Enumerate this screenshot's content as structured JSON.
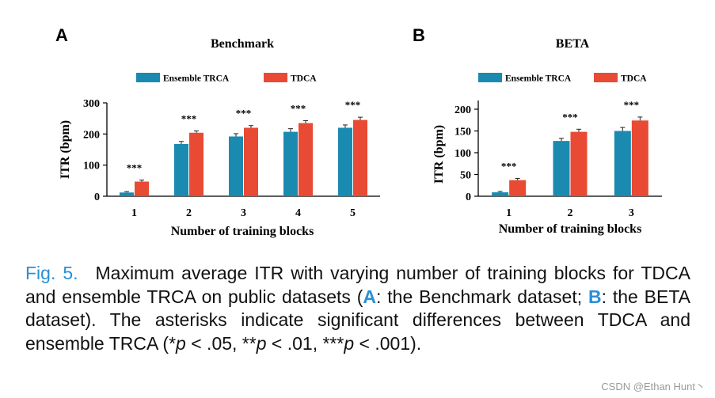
{
  "colors": {
    "ensemble": "#1a8ab0",
    "tdca": "#e84a33",
    "caption_accent": "#2a8fd6"
  },
  "chart_data": [
    {
      "panel": "A",
      "type": "bar",
      "title": "Benchmark",
      "xlabel": "Number of training blocks",
      "ylabel": "ITR (bpm)",
      "ylim": [
        0,
        300
      ],
      "yticks": [
        0,
        100,
        200,
        300
      ],
      "categories": [
        "1",
        "2",
        "3",
        "4",
        "5"
      ],
      "series": [
        {
          "name": "Ensemble TRCA",
          "values": [
            12,
            168,
            192,
            207,
            220
          ],
          "errors": [
            3,
            8,
            9,
            10,
            9
          ]
        },
        {
          "name": "TDCA",
          "values": [
            47,
            204,
            220,
            235,
            245
          ],
          "errors": [
            5,
            6,
            7,
            8,
            9
          ]
        }
      ],
      "annotations": [
        "***",
        "***",
        "***",
        "***",
        "***"
      ],
      "legend": "top-center"
    },
    {
      "panel": "B",
      "type": "bar",
      "title": "BETA",
      "xlabel": "Number of training blocks",
      "ylabel": "ITR (bpm)",
      "ylim": [
        0,
        220
      ],
      "yticks": [
        0,
        50,
        100,
        150,
        200
      ],
      "categories": [
        "1",
        "2",
        "3"
      ],
      "series": [
        {
          "name": "Ensemble TRCA",
          "values": [
            9,
            127,
            150
          ],
          "errors": [
            2,
            6,
            8
          ]
        },
        {
          "name": "TDCA",
          "values": [
            37,
            148,
            174
          ],
          "errors": [
            4,
            6,
            8
          ]
        }
      ],
      "annotations": [
        "***",
        "***",
        "***"
      ],
      "legend": "top-center"
    }
  ],
  "caption": {
    "label": "Fig. 5.",
    "part1": "Maximum average ITR with varying number of training blocks for TDCA and ensemble TRCA on public datasets (",
    "refA": "A",
    "part2": ": the Benchmark dataset; ",
    "refB": "B",
    "part3": ": the BETA dataset). The asterisks indicate significant differences between TDCA and ensemble TRCA (*",
    "p1": "p",
    "part4": " < .05, **",
    "p2": "p",
    "part5": " < .01, ***",
    "p3": "p",
    "part6": " < .001)."
  },
  "watermark": "CSDN @Ethan Hunt丶"
}
